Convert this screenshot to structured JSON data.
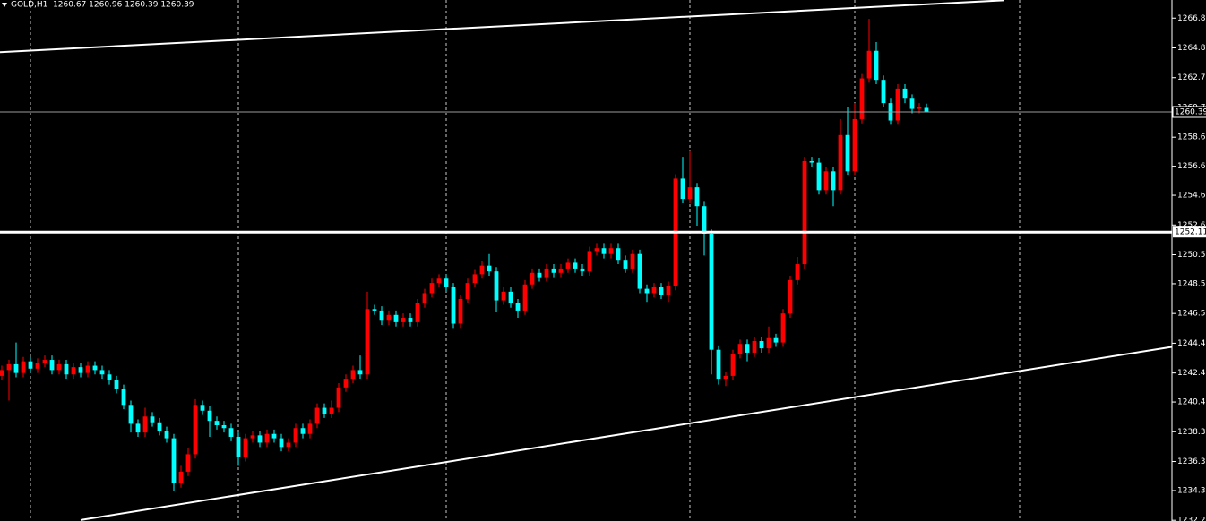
{
  "chart_data": {
    "type": "candlestick",
    "title": "GOLD,H1  1260.67 1260.96 1260.39 1260.39",
    "up_color": "#ff0000",
    "down_color": "#00ffff",
    "line_color": "#ffffff",
    "xlim": [
      -0.25,
      163.25
    ],
    "ylim": [
      1232.2,
      1268.1
    ],
    "yticks": [
      1266.85,
      {
        "value": 1264.8,
        "label": "1264.80"
      },
      1262.75,
      {
        "value": 1260.7,
        "label": "1260.70"
      },
      1258.65,
      1256.65,
      1254.65,
      {
        "value": 1252.6,
        "label": "1252.60"
      },
      1250.55,
      1248.55,
      {
        "value": 1246.5,
        "label": "1246.50"
      },
      1244.45,
      {
        "value": 1242.4,
        "label": "1242.40"
      },
      {
        "value": 1240.4,
        "label": "1240.40"
      },
      1238.35,
      {
        "value": 1236.3,
        "label": "1236.30"
      },
      {
        "value": 1234.3,
        "label": "1234.30"
      },
      1232.25
    ],
    "xgrid": [
      4,
      33,
      62,
      96,
      119,
      142
    ],
    "grid": true,
    "bid": 1260.39,
    "hlines": [
      1252.11
    ],
    "trendlines": [
      {
        "x": [
          -0.25,
          139.75
        ],
        "y": [
          1264.51,
          1268.08
        ]
      },
      {
        "x": [
          11,
          163.25
        ],
        "y": [
          1232.27,
          1244.2
        ]
      }
    ],
    "open": [
      1242.2,
      1242.6,
      1243.0,
      1242.4,
      1243.2,
      1242.7,
      1243.1,
      1243.3,
      1242.6,
      1243.0,
      1242.3,
      1242.8,
      1242.4,
      1242.9,
      1242.6,
      1242.3,
      1241.9,
      1241.3,
      1240.2,
      1238.9,
      1238.3,
      1239.4,
      1239.0,
      1238.4,
      1237.9,
      1234.8,
      1235.6,
      1236.8,
      1240.2,
      1239.8,
      1239.1,
      1238.8,
      1238.6,
      1238.0,
      1236.6,
      1237.9,
      1238.1,
      1237.6,
      1238.2,
      1237.9,
      1237.3,
      1237.6,
      1238.6,
      1238.2,
      1238.9,
      1240.0,
      1239.6,
      1240.0,
      1241.4,
      1242.0,
      1242.6,
      1242.3,
      1246.8,
      1246.7,
      1246.0,
      1246.4,
      1245.9,
      1246.2,
      1245.9,
      1247.2,
      1247.9,
      1248.6,
      1248.9,
      1248.3,
      1245.8,
      1247.5,
      1248.6,
      1249.2,
      1249.8,
      1249.4,
      1247.4,
      1248.0,
      1247.2,
      1246.7,
      1248.5,
      1249.3,
      1249.0,
      1249.6,
      1249.3,
      1249.6,
      1250.0,
      1249.6,
      1249.4,
      1250.8,
      1251.0,
      1250.6,
      1251.0,
      1250.2,
      1249.6,
      1250.6,
      1248.2,
      1247.9,
      1248.3,
      1247.8,
      1248.4,
      1255.8,
      1254.4,
      1255.2,
      1253.9,
      1252.0,
      1244.0,
      1242.0,
      1242.2,
      1243.7,
      1244.4,
      1243.8,
      1244.6,
      1244.1,
      1244.8,
      1244.5,
      1246.5,
      1248.8,
      1249.9,
      1257.0,
      1256.9,
      1255.0,
      1256.3,
      1255.0,
      1258.8,
      1256.3,
      1259.9,
      1262.7,
      1264.6,
      1262.6,
      1261.0,
      1259.8,
      1262.0,
      1261.3,
      1260.6,
      1260.67
    ],
    "high": [
      1242.9,
      1243.3,
      1244.5,
      1243.5,
      1243.5,
      1243.4,
      1243.6,
      1243.6,
      1243.3,
      1243.3,
      1243.1,
      1243.1,
      1243.2,
      1243.2,
      1242.9,
      1242.6,
      1242.2,
      1241.6,
      1240.5,
      1239.2,
      1240.0,
      1239.7,
      1239.3,
      1238.7,
      1238.2,
      1236.0,
      1237.2,
      1240.6,
      1240.5,
      1240.1,
      1239.4,
      1239.1,
      1238.9,
      1238.3,
      1238.2,
      1238.4,
      1238.4,
      1238.5,
      1238.5,
      1238.2,
      1237.9,
      1238.9,
      1238.9,
      1239.2,
      1240.3,
      1240.3,
      1240.5,
      1241.7,
      1242.3,
      1242.9,
      1243.6,
      1248.0,
      1247.1,
      1247.0,
      1246.7,
      1246.7,
      1246.5,
      1246.5,
      1247.5,
      1248.2,
      1248.9,
      1249.2,
      1249.2,
      1248.6,
      1247.8,
      1248.9,
      1249.5,
      1250.1,
      1250.6,
      1249.7,
      1248.3,
      1248.3,
      1247.5,
      1248.8,
      1249.6,
      1249.6,
      1249.9,
      1249.9,
      1249.9,
      1250.3,
      1250.3,
      1249.9,
      1251.1,
      1251.3,
      1251.3,
      1251.3,
      1251.3,
      1250.5,
      1250.9,
      1250.9,
      1248.5,
      1248.6,
      1248.6,
      1248.7,
      1256.1,
      1257.3,
      1257.7,
      1255.5,
      1254.2,
      1252.3,
      1244.3,
      1242.5,
      1244.0,
      1244.7,
      1244.7,
      1244.9,
      1244.9,
      1245.6,
      1245.1,
      1246.8,
      1249.1,
      1250.4,
      1257.3,
      1257.3,
      1257.2,
      1256.6,
      1256.6,
      1259.9,
      1260.7,
      1261.0,
      1263.0,
      1266.8,
      1265.2,
      1262.9,
      1261.3,
      1262.3,
      1262.3,
      1261.6,
      1261.0,
      1260.96
    ],
    "low": [
      1241.9,
      1240.5,
      1242.1,
      1242.1,
      1242.4,
      1242.4,
      1242.8,
      1242.3,
      1242.3,
      1242.0,
      1242.0,
      1242.1,
      1242.1,
      1242.3,
      1242.0,
      1241.6,
      1241.0,
      1239.9,
      1238.3,
      1238.0,
      1238.0,
      1238.7,
      1238.1,
      1237.6,
      1234.3,
      1234.5,
      1235.3,
      1236.5,
      1239.5,
      1238.0,
      1238.5,
      1238.3,
      1237.7,
      1236.0,
      1236.3,
      1237.6,
      1237.3,
      1237.3,
      1237.6,
      1237.0,
      1237.0,
      1237.3,
      1237.9,
      1237.9,
      1238.6,
      1239.3,
      1239.3,
      1239.7,
      1241.1,
      1241.7,
      1242.0,
      1242.0,
      1246.4,
      1245.7,
      1245.7,
      1245.6,
      1245.6,
      1245.6,
      1245.6,
      1246.9,
      1247.6,
      1248.3,
      1248.0,
      1245.5,
      1245.5,
      1247.2,
      1248.3,
      1248.9,
      1249.1,
      1246.6,
      1247.1,
      1246.9,
      1246.2,
      1246.4,
      1248.2,
      1248.7,
      1248.7,
      1249.0,
      1249.0,
      1249.3,
      1249.3,
      1249.1,
      1249.1,
      1250.5,
      1250.3,
      1250.3,
      1249.9,
      1249.3,
      1249.3,
      1247.9,
      1247.3,
      1247.6,
      1247.5,
      1247.3,
      1248.1,
      1254.1,
      1254.1,
      1252.5,
      1250.5,
      1242.3,
      1241.6,
      1241.5,
      1241.9,
      1243.4,
      1243.2,
      1243.5,
      1243.8,
      1243.8,
      1244.2,
      1244.2,
      1246.2,
      1248.5,
      1249.6,
      1256.6,
      1254.7,
      1254.7,
      1253.9,
      1254.7,
      1256.0,
      1256.0,
      1259.6,
      1262.4,
      1262.3,
      1260.7,
      1259.5,
      1259.5,
      1261.0,
      1260.3,
      1260.3,
      1260.39
    ],
    "close": [
      1242.6,
      1243.0,
      1242.4,
      1243.2,
      1242.7,
      1243.1,
      1243.3,
      1242.6,
      1243.0,
      1242.3,
      1242.8,
      1242.4,
      1242.9,
      1242.6,
      1242.3,
      1241.9,
      1241.3,
      1240.2,
      1238.9,
      1238.3,
      1239.4,
      1239.0,
      1238.4,
      1237.9,
      1234.8,
      1235.6,
      1236.8,
      1240.2,
      1239.8,
      1239.1,
      1238.8,
      1238.6,
      1238.0,
      1236.6,
      1237.9,
      1238.1,
      1237.6,
      1238.2,
      1237.9,
      1237.3,
      1237.6,
      1238.6,
      1238.2,
      1238.9,
      1240.0,
      1239.6,
      1240.0,
      1241.4,
      1242.0,
      1242.6,
      1242.3,
      1246.8,
      1246.7,
      1246.0,
      1246.4,
      1245.9,
      1246.2,
      1245.9,
      1247.2,
      1247.9,
      1248.6,
      1248.9,
      1248.3,
      1245.8,
      1247.5,
      1248.6,
      1249.2,
      1249.8,
      1249.4,
      1247.4,
      1248.0,
      1247.2,
      1246.7,
      1248.5,
      1249.3,
      1249.0,
      1249.6,
      1249.3,
      1249.6,
      1250.0,
      1249.6,
      1249.4,
      1250.8,
      1251.0,
      1250.6,
      1251.0,
      1250.2,
      1249.6,
      1250.6,
      1248.2,
      1247.9,
      1248.3,
      1247.8,
      1248.4,
      1255.8,
      1254.4,
      1255.2,
      1253.9,
      1252.0,
      1244.0,
      1242.0,
      1242.2,
      1243.7,
      1244.4,
      1243.8,
      1244.6,
      1244.1,
      1244.8,
      1244.5,
      1246.5,
      1248.8,
      1249.9,
      1257.0,
      1256.9,
      1255.0,
      1256.3,
      1255.0,
      1258.8,
      1256.3,
      1259.9,
      1262.7,
      1264.6,
      1262.6,
      1261.0,
      1259.8,
      1262.0,
      1261.3,
      1260.6,
      1260.7,
      1260.39
    ]
  }
}
